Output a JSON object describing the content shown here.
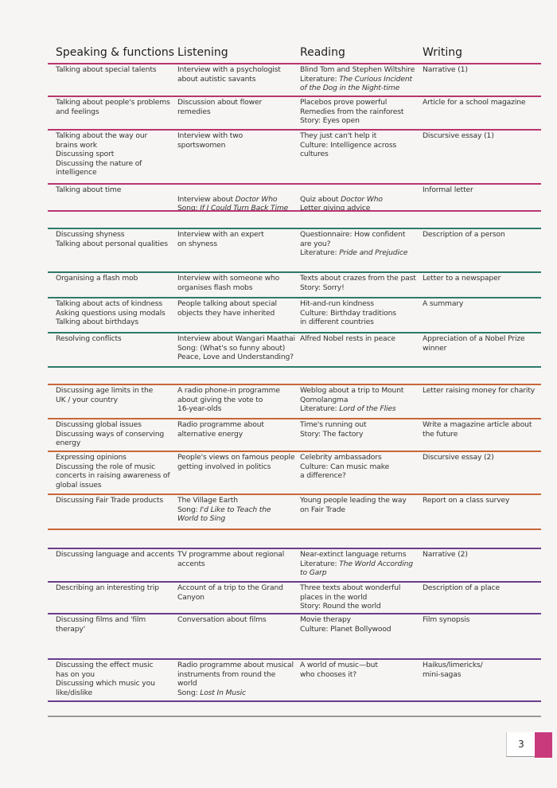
{
  "colors": {
    "section1": "#b8366f",
    "section2": "#2f7a6a",
    "section3": "#c8663a",
    "section4": "#6b3d8c",
    "separator": "#9a9a9a",
    "tab": "#c83a7c"
  },
  "headers": [
    "Speaking & functions",
    "Listening",
    "Reading",
    "Writing"
  ],
  "page_number": "3",
  "sections": [
    {
      "rows": [
        [
          [
            [
              "Talking about special talents"
            ]
          ],
          [
            [
              "Interview with a psychologist"
            ],
            [
              "about autistic savants"
            ]
          ],
          [
            [
              "Blind Tom and Stephen Wiltshire"
            ],
            [
              "Literature: ",
              {
                "i": "The Curious Incident"
              }
            ],
            [
              {
                "i": "of the Dog in the Night-time"
              }
            ]
          ],
          [
            [
              "Narrative (1)"
            ]
          ]
        ],
        [
          [
            [
              "Talking about people's problems"
            ],
            [
              "and feelings"
            ]
          ],
          [
            [
              "Discussion about flower"
            ],
            [
              "remedies"
            ]
          ],
          [
            [
              "Placebos prove powerful"
            ],
            [
              "Remedies from the rainforest"
            ],
            [
              "Story: Eyes open"
            ]
          ],
          [
            [
              "Article for a school magazine"
            ]
          ]
        ],
        [
          [
            [
              "Talking about the way our"
            ],
            [
              "brains work"
            ],
            [
              "Discussing sport"
            ],
            [
              "Discussing the nature of"
            ],
            [
              "intelligence"
            ]
          ],
          [
            [
              "Interview with two"
            ],
            [
              "sportswomen"
            ]
          ],
          [
            [
              "They just can't help it"
            ],
            [
              "Culture: Intelligence across"
            ],
            [
              "cultures"
            ]
          ],
          [
            [
              "Discursive essay (1)"
            ]
          ]
        ],
        [
          [
            [
              "Talking about time"
            ]
          ],
          [
            [
              ""
            ],
            [
              "Interview about ",
              {
                "i": "Doctor Who"
              }
            ],
            [
              "Song: ",
              {
                "i": "If I Could Turn Back Time"
              }
            ]
          ],
          [
            [
              ""
            ],
            [
              "Quiz about ",
              {
                "i": "Doctor Who"
              }
            ],
            [
              "Letter giving advice"
            ]
          ],
          [
            [
              "Informal letter"
            ]
          ]
        ]
      ]
    },
    {
      "rows": [
        [
          [
            [
              "Discussing shyness"
            ],
            [
              "Talking about personal qualities"
            ]
          ],
          [
            [
              "Interview with an expert"
            ],
            [
              "on shyness"
            ]
          ],
          [
            [
              "Questionnaire: How confident"
            ],
            [
              "are you?"
            ],
            [
              "Literature: ",
              {
                "i": "Pride and Prejudice"
              }
            ]
          ],
          [
            [
              "Description of a person"
            ]
          ]
        ],
        [
          [
            [
              "Organising a flash mob"
            ]
          ],
          [
            [
              "Interview with someone who"
            ],
            [
              "organises flash mobs"
            ]
          ],
          [
            [
              "Texts about crazes from the past"
            ],
            [
              "Story: Sorry!"
            ]
          ],
          [
            [
              "Letter to a newspaper"
            ]
          ]
        ],
        [
          [
            [
              "Talking about acts of kindness"
            ],
            [
              "Asking questions using modals"
            ],
            [
              "Talking about birthdays"
            ]
          ],
          [
            [
              "People talking about special"
            ],
            [
              "objects they have inherited"
            ]
          ],
          [
            [
              "Hit-and-run kindness"
            ],
            [
              "Culture: Birthday traditions"
            ],
            [
              "in different countries"
            ]
          ],
          [
            [
              "A summary"
            ]
          ]
        ],
        [
          [
            [
              "Resolving conflicts"
            ]
          ],
          [
            [
              "Interview about Wangari Maathai"
            ],
            [
              "Song: (What's so funny about)"
            ],
            [
              "Peace, Love and Understanding?"
            ]
          ],
          [
            [
              "Alfred Nobel rests in peace"
            ]
          ],
          [
            [
              "Appreciation of a Nobel Prize"
            ],
            [
              "winner"
            ]
          ]
        ]
      ]
    },
    {
      "rows": [
        [
          [
            [
              "Discussing age limits in the"
            ],
            [
              "UK / your country"
            ]
          ],
          [
            [
              "A radio phone-in programme"
            ],
            [
              "about giving the vote to"
            ],
            [
              "16-year-olds"
            ]
          ],
          [
            [
              "Weblog about a trip to Mount"
            ],
            [
              "Qomolangma"
            ],
            [
              "Literature: ",
              {
                "i": "Lord of the Flies"
              }
            ]
          ],
          [
            [
              "Letter raising money for charity"
            ]
          ]
        ],
        [
          [
            [
              "Discussing global issues"
            ],
            [
              "Discussing ways of conserving"
            ],
            [
              "energy"
            ]
          ],
          [
            [
              "Radio programme about"
            ],
            [
              "alternative energy"
            ]
          ],
          [
            [
              "Time's running out"
            ],
            [
              "Story: The factory"
            ]
          ],
          [
            [
              "Write a magazine article about"
            ],
            [
              "the future"
            ]
          ]
        ],
        [
          [
            [
              "Expressing opinions"
            ],
            [
              "Discussing the role of music"
            ],
            [
              "concerts in raising awareness of"
            ],
            [
              "global issues"
            ]
          ],
          [
            [
              "People's views on famous people"
            ],
            [
              "getting involved in politics"
            ]
          ],
          [
            [
              "Celebrity ambassadors"
            ],
            [
              "Culture: Can music make"
            ],
            [
              "a difference?"
            ]
          ],
          [
            [
              "Discursive essay (2)"
            ]
          ]
        ],
        [
          [
            [
              "Discussing Fair Trade products"
            ]
          ],
          [
            [
              "The Village Earth"
            ],
            [
              "Song: ",
              {
                "i": "I'd Like to Teach the"
              }
            ],
            [
              {
                "i": "World to Sing"
              }
            ]
          ],
          [
            [
              "Young people leading the way"
            ],
            [
              "on Fair Trade"
            ]
          ],
          [
            [
              "Report on a class survey"
            ]
          ]
        ]
      ]
    },
    {
      "rows": [
        [
          [
            [
              "Discussing language and accents"
            ]
          ],
          [
            [
              "TV programme about regional"
            ],
            [
              "accents"
            ]
          ],
          [
            [
              "Near-extinct language returns"
            ],
            [
              "Literature: ",
              {
                "i": "The World According"
              }
            ],
            [
              {
                "i": "to Garp"
              }
            ]
          ],
          [
            [
              "Narrative (2)"
            ]
          ]
        ],
        [
          [
            [
              "Describing an interesting trip"
            ]
          ],
          [
            [
              "Account of a trip to the Grand"
            ],
            [
              "Canyon"
            ]
          ],
          [
            [
              "Three texts about wonderful"
            ],
            [
              "places in the world"
            ],
            [
              "Story: Round the world"
            ]
          ],
          [
            [
              "Description of a place"
            ]
          ]
        ],
        [
          [
            [
              "Discussing films and 'film"
            ],
            [
              "therapy'"
            ]
          ],
          [
            [
              "Conversation about films"
            ]
          ],
          [
            [
              "Movie therapy"
            ],
            [
              "Culture: Planet Bollywood"
            ]
          ],
          [
            [
              "Film synopsis"
            ]
          ]
        ],
        [
          [
            [
              "Discussing the effect music"
            ],
            [
              "has on you"
            ],
            [
              "Discussing which music you"
            ],
            [
              "like/dislike"
            ]
          ],
          [
            [
              "Radio programme about musical"
            ],
            [
              "instruments from round the"
            ],
            [
              "world"
            ],
            [
              "Song: ",
              {
                "i": "Lost In Music"
              }
            ]
          ],
          [
            [
              "A world of music—but"
            ],
            [
              "who chooses it?"
            ]
          ],
          [
            [
              "Haikus/limericks/"
            ],
            [
              "mini-sagas"
            ]
          ]
        ]
      ]
    }
  ]
}
